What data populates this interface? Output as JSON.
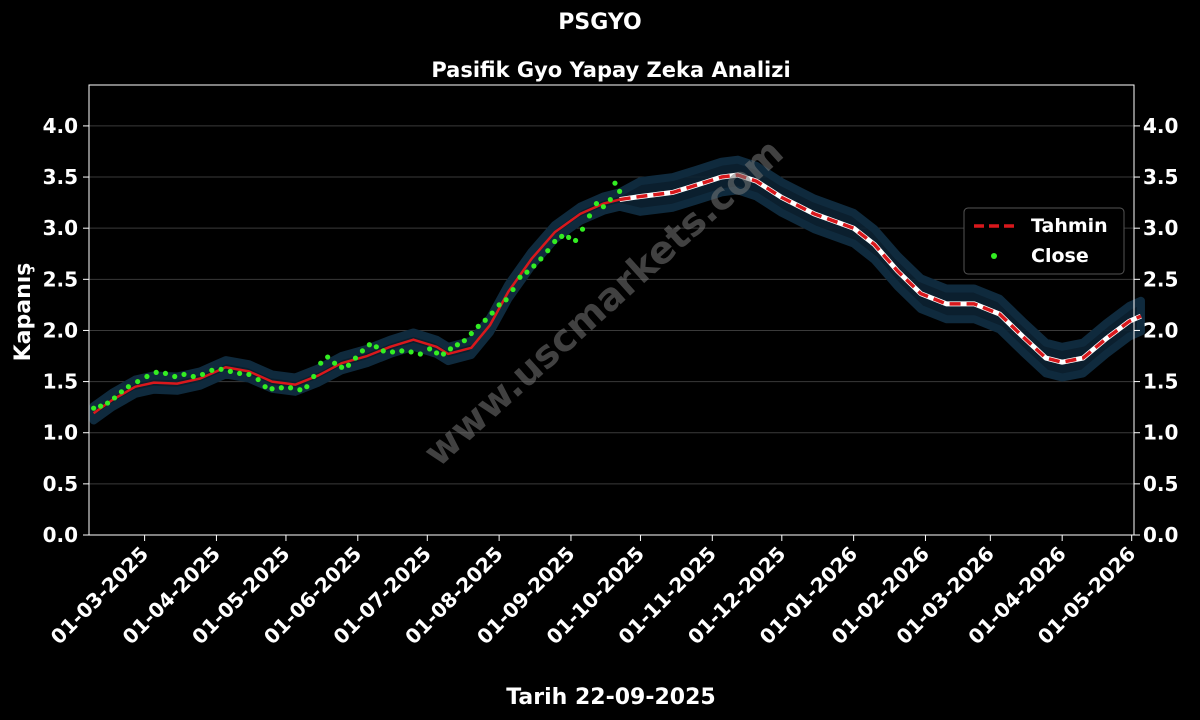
{
  "chart_data": {
    "type": "line",
    "title": "PSGYO",
    "subtitle": "Pasifik Gyo Yapay Zeka Analizi",
    "xlabel": "Tarih 22-09-2025",
    "ylabel": "Kapanış",
    "ylim": [
      0,
      4.4
    ],
    "y_ticks": [
      "0.0",
      "0.5",
      "1.0",
      "1.5",
      "2.0",
      "2.5",
      "3.0",
      "3.5",
      "4.0"
    ],
    "x_ticks": [
      "01-03-2025",
      "01-04-2025",
      "01-05-2025",
      "01-06-2025",
      "01-07-2025",
      "01-08-2025",
      "01-09-2025",
      "01-10-2025",
      "01-11-2025",
      "01-12-2025",
      "01-01-2026",
      "01-02-2026",
      "01-03-2026",
      "01-04-2026",
      "01-05-2026"
    ],
    "grid": true,
    "legend_position": "right",
    "watermark": "www.uscmarkets.com",
    "colors": {
      "background": "#000000",
      "forecast": "#d9181c",
      "close": "#33ee22",
      "band": "#0c2233",
      "grid": "#3a3a3a"
    },
    "series": [
      {
        "name": "Tahmin",
        "style": "solid-then-dashed",
        "points": [
          [
            "2025-02-07",
            1.19
          ],
          [
            "2025-02-15",
            1.32
          ],
          [
            "2025-02-25",
            1.45
          ],
          [
            "2025-03-05",
            1.49
          ],
          [
            "2025-03-15",
            1.48
          ],
          [
            "2025-03-25",
            1.53
          ],
          [
            "2025-04-01",
            1.6
          ],
          [
            "2025-04-05",
            1.64
          ],
          [
            "2025-04-15",
            1.6
          ],
          [
            "2025-04-25",
            1.5
          ],
          [
            "2025-05-05",
            1.47
          ],
          [
            "2025-05-15",
            1.56
          ],
          [
            "2025-05-25",
            1.68
          ],
          [
            "2025-06-05",
            1.75
          ],
          [
            "2025-06-15",
            1.84
          ],
          [
            "2025-06-25",
            1.91
          ],
          [
            "2025-07-05",
            1.84
          ],
          [
            "2025-07-10",
            1.77
          ],
          [
            "2025-07-20",
            1.83
          ],
          [
            "2025-07-28",
            2.05
          ],
          [
            "2025-08-05",
            2.38
          ],
          [
            "2025-08-15",
            2.7
          ],
          [
            "2025-08-25",
            2.96
          ],
          [
            "2025-09-05",
            3.14
          ],
          [
            "2025-09-15",
            3.24
          ],
          [
            "2025-09-22",
            3.28
          ],
          [
            "2025-10-01",
            3.31
          ],
          [
            "2025-10-15",
            3.35
          ],
          [
            "2025-10-25",
            3.42
          ],
          [
            "2025-11-05",
            3.5
          ],
          [
            "2025-11-12",
            3.52
          ],
          [
            "2025-11-20",
            3.46
          ],
          [
            "2025-12-01",
            3.3
          ],
          [
            "2025-12-15",
            3.14
          ],
          [
            "2026-01-01",
            3.0
          ],
          [
            "2026-01-10",
            2.84
          ],
          [
            "2026-01-20",
            2.58
          ],
          [
            "2026-01-30",
            2.36
          ],
          [
            "2026-02-10",
            2.26
          ],
          [
            "2026-02-22",
            2.26
          ],
          [
            "2026-03-05",
            2.16
          ],
          [
            "2026-03-15",
            1.94
          ],
          [
            "2026-03-25",
            1.73
          ],
          [
            "2026-04-01",
            1.69
          ],
          [
            "2026-04-10",
            1.73
          ],
          [
            "2026-04-20",
            1.92
          ],
          [
            "2026-04-30",
            2.09
          ],
          [
            "2026-05-05",
            2.14
          ]
        ]
      },
      {
        "name": "Close",
        "style": "dots",
        "points": [
          [
            "2025-02-07",
            1.24
          ],
          [
            "2025-02-10",
            1.26
          ],
          [
            "2025-02-13",
            1.29
          ],
          [
            "2025-02-16",
            1.34
          ],
          [
            "2025-02-19",
            1.4
          ],
          [
            "2025-02-22",
            1.45
          ],
          [
            "2025-02-26",
            1.5
          ],
          [
            "2025-03-02",
            1.55
          ],
          [
            "2025-03-06",
            1.59
          ],
          [
            "2025-03-10",
            1.58
          ],
          [
            "2025-03-14",
            1.55
          ],
          [
            "2025-03-18",
            1.57
          ],
          [
            "2025-03-22",
            1.55
          ],
          [
            "2025-03-26",
            1.57
          ],
          [
            "2025-03-30",
            1.61
          ],
          [
            "2025-04-03",
            1.62
          ],
          [
            "2025-04-07",
            1.6
          ],
          [
            "2025-04-11",
            1.58
          ],
          [
            "2025-04-15",
            1.57
          ],
          [
            "2025-04-19",
            1.52
          ],
          [
            "2025-04-22",
            1.45
          ],
          [
            "2025-04-25",
            1.43
          ],
          [
            "2025-04-29",
            1.44
          ],
          [
            "2025-05-03",
            1.44
          ],
          [
            "2025-05-07",
            1.42
          ],
          [
            "2025-05-10",
            1.45
          ],
          [
            "2025-05-13",
            1.55
          ],
          [
            "2025-05-16",
            1.68
          ],
          [
            "2025-05-19",
            1.74
          ],
          [
            "2025-05-22",
            1.68
          ],
          [
            "2025-05-25",
            1.64
          ],
          [
            "2025-05-28",
            1.66
          ],
          [
            "2025-05-31",
            1.73
          ],
          [
            "2025-06-03",
            1.8
          ],
          [
            "2025-06-06",
            1.86
          ],
          [
            "2025-06-09",
            1.84
          ],
          [
            "2025-06-12",
            1.8
          ],
          [
            "2025-06-16",
            1.79
          ],
          [
            "2025-06-20",
            1.8
          ],
          [
            "2025-06-24",
            1.79
          ],
          [
            "2025-06-28",
            1.77
          ],
          [
            "2025-07-02",
            1.82
          ],
          [
            "2025-07-05",
            1.78
          ],
          [
            "2025-07-08",
            1.77
          ],
          [
            "2025-07-11",
            1.82
          ],
          [
            "2025-07-14",
            1.86
          ],
          [
            "2025-07-17",
            1.9
          ],
          [
            "2025-07-20",
            1.97
          ],
          [
            "2025-07-23",
            2.04
          ],
          [
            "2025-07-26",
            2.1
          ],
          [
            "2025-07-29",
            2.17
          ],
          [
            "2025-08-01",
            2.25
          ],
          [
            "2025-08-04",
            2.3
          ],
          [
            "2025-08-07",
            2.4
          ],
          [
            "2025-08-10",
            2.52
          ],
          [
            "2025-08-13",
            2.57
          ],
          [
            "2025-08-16",
            2.63
          ],
          [
            "2025-08-19",
            2.7
          ],
          [
            "2025-08-22",
            2.78
          ],
          [
            "2025-08-25",
            2.87
          ],
          [
            "2025-08-28",
            2.92
          ],
          [
            "2025-08-31",
            2.91
          ],
          [
            "2025-09-03",
            2.88
          ],
          [
            "2025-09-06",
            2.99
          ],
          [
            "2025-09-09",
            3.12
          ],
          [
            "2025-09-12",
            3.24
          ],
          [
            "2025-09-15",
            3.21
          ],
          [
            "2025-09-18",
            3.28
          ],
          [
            "2025-09-20",
            3.44
          ],
          [
            "2025-09-22",
            3.36
          ]
        ]
      }
    ]
  }
}
